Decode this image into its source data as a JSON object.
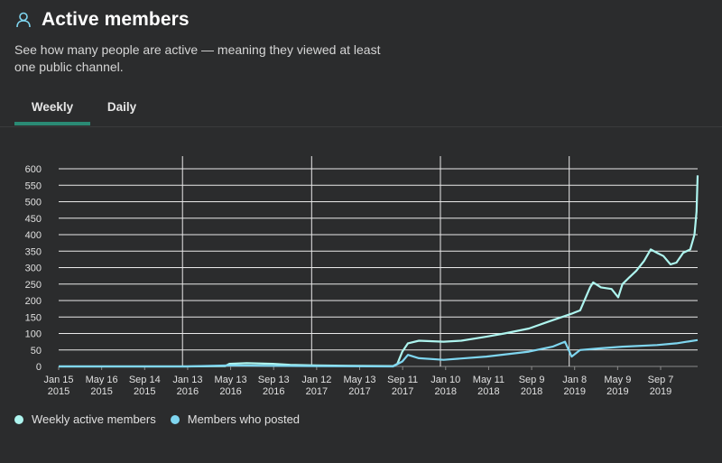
{
  "header": {
    "title": "Active members",
    "subtitle": "See how many people are active — meaning they viewed at least one public channel."
  },
  "tabs": [
    {
      "label": "Weekly",
      "active": true
    },
    {
      "label": "Daily",
      "active": false
    }
  ],
  "colors": {
    "background": "#2b2c2d",
    "accent": "#2a8a74",
    "weekly_series": "#aef5ef",
    "posted_series": "#7fd6f0"
  },
  "chart_data": {
    "type": "line",
    "x_ticks": [
      [
        "Jan 15",
        "2015"
      ],
      [
        "May 16",
        "2015"
      ],
      [
        "Sep 14",
        "2015"
      ],
      [
        "Jan 13",
        "2016"
      ],
      [
        "May 13",
        "2016"
      ],
      [
        "Sep 13",
        "2016"
      ],
      [
        "Jan 12",
        "2017"
      ],
      [
        "May 13",
        "2017"
      ],
      [
        "Sep 11",
        "2017"
      ],
      [
        "Jan 10",
        "2018"
      ],
      [
        "May 11",
        "2018"
      ],
      [
        "Sep 9",
        "2018"
      ],
      [
        "Jan 8",
        "2019"
      ],
      [
        "May 9",
        "2019"
      ],
      [
        "Sep 7",
        "2019"
      ]
    ],
    "y_ticks": [
      0,
      50,
      100,
      150,
      200,
      250,
      300,
      350,
      400,
      450,
      500,
      550,
      600
    ],
    "ylim": [
      0,
      600
    ],
    "x_range": [
      "Jan 15 2015",
      "Jan 2020"
    ],
    "grid": "horizontal lines, vertical lines at year boundaries",
    "legend_position": "bottom-left",
    "series": [
      {
        "name": "Weekly active members",
        "points": [
          [
            "2015-01-15",
            0
          ],
          [
            "2016-01-13",
            0
          ],
          [
            "2016-05-01",
            1
          ],
          [
            "2016-05-13",
            8
          ],
          [
            "2016-07-01",
            10
          ],
          [
            "2016-09-13",
            8
          ],
          [
            "2016-11-01",
            5
          ],
          [
            "2017-01-12",
            3
          ],
          [
            "2017-05-13",
            2
          ],
          [
            "2017-08-20",
            1
          ],
          [
            "2017-09-01",
            8
          ],
          [
            "2017-09-15",
            45
          ],
          [
            "2017-10-01",
            70
          ],
          [
            "2017-11-01",
            78
          ],
          [
            "2018-01-10",
            75
          ],
          [
            "2018-03-01",
            78
          ],
          [
            "2018-05-11",
            90
          ],
          [
            "2018-07-01",
            100
          ],
          [
            "2018-09-09",
            115
          ],
          [
            "2018-11-01",
            135
          ],
          [
            "2019-01-08",
            160
          ],
          [
            "2019-02-01",
            170
          ],
          [
            "2019-03-01",
            240
          ],
          [
            "2019-03-10",
            255
          ],
          [
            "2019-04-01",
            240
          ],
          [
            "2019-05-01",
            235
          ],
          [
            "2019-05-20",
            210
          ],
          [
            "2019-06-01",
            250
          ],
          [
            "2019-06-20",
            270
          ],
          [
            "2019-07-10",
            290
          ],
          [
            "2019-08-01",
            320
          ],
          [
            "2019-08-20",
            355
          ],
          [
            "2019-09-07",
            345
          ],
          [
            "2019-09-25",
            335
          ],
          [
            "2019-10-15",
            310
          ],
          [
            "2019-11-01",
            315
          ],
          [
            "2019-11-20",
            345
          ],
          [
            "2019-12-10",
            355
          ],
          [
            "2019-12-22",
            400
          ],
          [
            "2019-12-28",
            470
          ],
          [
            "2019-12-31",
            580
          ]
        ]
      },
      {
        "name": "Members who posted",
        "points": [
          [
            "2015-01-15",
            0
          ],
          [
            "2016-01-13",
            0
          ],
          [
            "2016-05-13",
            3
          ],
          [
            "2016-09-13",
            2
          ],
          [
            "2017-01-12",
            1
          ],
          [
            "2017-08-20",
            0
          ],
          [
            "2017-09-15",
            15
          ],
          [
            "2017-10-01",
            35
          ],
          [
            "2017-11-01",
            25
          ],
          [
            "2018-01-10",
            20
          ],
          [
            "2018-05-11",
            30
          ],
          [
            "2018-09-09",
            45
          ],
          [
            "2018-11-15",
            60
          ],
          [
            "2018-12-20",
            75
          ],
          [
            "2019-01-08",
            30
          ],
          [
            "2019-02-01",
            50
          ],
          [
            "2019-04-01",
            55
          ],
          [
            "2019-06-01",
            60
          ],
          [
            "2019-09-07",
            65
          ],
          [
            "2019-11-01",
            70
          ],
          [
            "2019-12-01",
            75
          ],
          [
            "2019-12-31",
            80
          ]
        ]
      }
    ]
  },
  "legend": [
    {
      "label": "Weekly active members",
      "color": "#aef5ef"
    },
    {
      "label": "Members who posted",
      "color": "#7fd6f0"
    }
  ]
}
